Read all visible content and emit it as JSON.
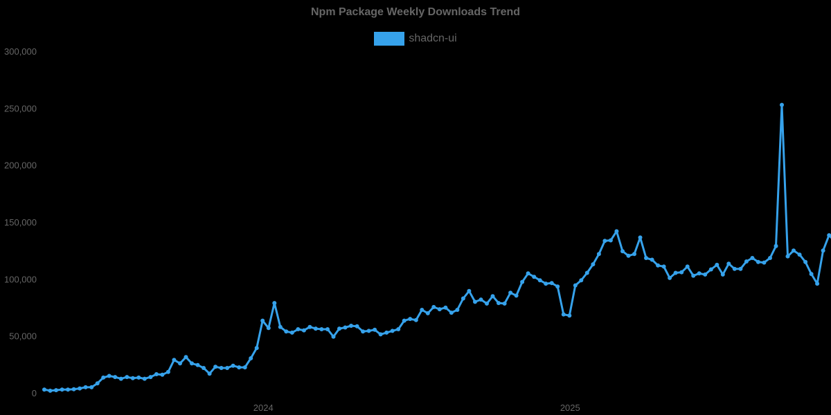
{
  "chart_data": {
    "type": "line",
    "title": "Npm Package Weekly Downloads Trend",
    "xlabel": "",
    "ylabel": "",
    "ylim": [
      0,
      300000
    ],
    "yticks": [
      "0",
      "50,000",
      "100,000",
      "150,000",
      "200,000",
      "250,000",
      "300,000"
    ],
    "xticks": [
      {
        "label": "2024",
        "index": 37
      },
      {
        "label": "2025",
        "index": 89
      }
    ],
    "grid": false,
    "legend_position": "top",
    "series": [
      {
        "name": "shadcn-ui",
        "color": "#36a2eb",
        "values": [
          3500,
          2500,
          3000,
          3500,
          3500,
          3800,
          4500,
          5500,
          5500,
          9000,
          14000,
          15500,
          14500,
          13000,
          14500,
          13500,
          14000,
          13000,
          14500,
          17000,
          16500,
          19000,
          29500,
          26500,
          32000,
          26500,
          25000,
          22500,
          17500,
          23500,
          22500,
          22500,
          24500,
          23000,
          23000,
          31000,
          40000,
          64000,
          57500,
          79500,
          58500,
          54500,
          53500,
          56500,
          55500,
          58500,
          57000,
          56500,
          56500,
          50000,
          57000,
          58000,
          59500,
          59000,
          54500,
          55000,
          56000,
          52000,
          53500,
          55000,
          56500,
          64000,
          65500,
          64500,
          73500,
          70500,
          76000,
          74000,
          75500,
          71000,
          73500,
          83500,
          90000,
          80500,
          82500,
          79000,
          85500,
          79500,
          79000,
          88500,
          86000,
          98000,
          105500,
          102500,
          99500,
          96500,
          97000,
          94000,
          69500,
          68500,
          95000,
          99500,
          106000,
          113500,
          122500,
          134000,
          134500,
          142500,
          125000,
          121000,
          122500,
          137000,
          119000,
          117500,
          112500,
          111500,
          101500,
          106000,
          106500,
          111500,
          103500,
          105500,
          104500,
          109000,
          113000,
          104500,
          114000,
          109500,
          109500,
          116000,
          119000,
          115500,
          115000,
          119000,
          129500,
          253500,
          120500,
          125500,
          122000,
          115500,
          105000,
          96500,
          125500,
          139000,
          133500
        ]
      }
    ]
  },
  "legend": {
    "label": "shadcn-ui",
    "color": "#36a2eb"
  }
}
